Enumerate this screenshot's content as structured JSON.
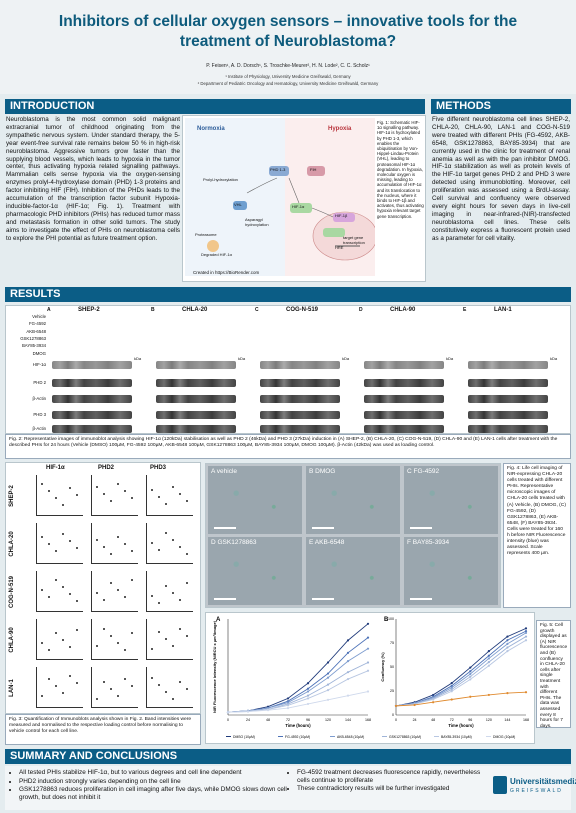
{
  "title": "Inhibitors of cellular oxygen sensors – innovative tools for the treatment of Neuroblastoma?",
  "authors": "P. Feisen¹, A. D. Dorsch¹, S. Troschke-Meurer², H. N. Lode², C. C. Scholz¹",
  "affiliations": [
    "¹ Institute of Physiology, University Medicine Greifswald, Germany",
    "² Department of Pediatric Oncology and Hematology, University Medicine Greifswald, Germany"
  ],
  "introduction": {
    "heading": "INTRODUCTION",
    "body": "Neuroblastoma is the most common solid malignant extracranial tumor of childhood originating from the sympathetic nervous system. Under standard therapy, the 5-year event-free survival rate remains below 50 % in high-risk neuroblastoma. Aggressive tumors grow faster than the supplying blood vessels, which leads to hypoxia in the tumor center, thus activating hypoxia related signalling pathways. Mammalian cells sense hypoxia via the oxygen-sensing enzymes prolyl-4-hydroxylase domain (PHD) 1-3 proteins and factor inhibiting HIF (FIH). Inhibition of the PHDs leads to the accumulation of the transcription factor subunit Hypoxia-inducible-factor-1α (HIF-1α; Fig. 1). Treatment with pharmacologic PHD inhibitors (PHIs) has reduced tumor mass and metastasis formation in other solid tumors. The study aims to investigate the effect of PHIs on neuroblastoma cells to explore the PHI potential as future treatment option.",
    "fig1": {
      "normoxia": "Normoxia",
      "hypoxia": "Hypoxia",
      "credit": "Created in https://BioRender.com",
      "caption": "Fig. 1: Schematic HIF-1α signalling pathway. HIF-1α is hydroxylated by PHD 1-3, which enables the ubiquitination by Von-Hippel-Lindau-Protein (VHL), leading to proteasomal HIF-1α degradation. In hypoxia, molecular oxygen is missing, leading to accumulation of HIF-1α and its translocation to the nucleus, where it binds to HIF-1β and activates, thus activating hypoxia relevant target gene transcription.",
      "labels": [
        "PHD 1-3",
        "FIH",
        "VHL",
        "HIF-1α",
        "HIF-1β",
        "Degraded HIF-1α",
        "Prolyl-hydroxylation",
        "Asparagyl hydroxylation",
        "Proteasome",
        "HRE",
        "target gene transcription"
      ]
    }
  },
  "methods": {
    "heading": "METHODS",
    "body": "Five different neuroblastoma cell lines SHEP-2, CHLA-20, CHLA-90, LAN-1 and COG-N-519 were treated with different PHIs (FG-4592, AKB-6548, GSK1278863, BAY85-3934) that are currently used in the clinic for treatment of renal anemia as well as with the pan inhibitor DMOG. HIF-1α stabilization as well as protein levels of the HIF-1α target genes PHD 2 and PHD 3 were detected using immunoblotting. Moreover, cell proliferation was assessed using a BrdU-assay. Cell survival and confluency were observed every eight hours for seven days in live-cell imaging in near-infrared-(NIR)-transfected neuroblastoma cell lines. These cells constitutively express a fluorescent protein used as a parameter for cell vitality."
  },
  "results": {
    "heading": "RESULTS",
    "cell_lines": [
      {
        "letter": "A",
        "name": "SHEP-2"
      },
      {
        "letter": "B",
        "name": "CHLA-20"
      },
      {
        "letter": "C",
        "name": "COG-N-519"
      },
      {
        "letter": "D",
        "name": "CHLA-90"
      },
      {
        "letter": "E",
        "name": "LAN-1"
      }
    ],
    "treatments": [
      "Vehicle",
      "FG-4592",
      "AKB-6548",
      "GSK1278863",
      "BAY85-3934",
      "DMOG"
    ],
    "blot_rows": [
      "HIF-1α",
      "PHD 2",
      "β-Actin",
      "PHD 3",
      "β-Actin"
    ],
    "kda": "kDa",
    "fig2_caption": "Fig. 2: Representative images of immunoblot analysis showing HIF-1α (120kDa) stabilisation as well as PHD 2 (46kDa) and PHD 3 (27kDa) induction in (A) SHEP-2, (B) CHLA-20, (C) COG-N-519, (D) CHLA-90 and (E) LAN-1 cells after treatment with the described PHIs for 24 hours (Vehicle (DMSO) 100µM, FG-4592 100µM, AKB-6548 100µM, GSK1278863 100µM, BAY85-3934 100µM, DMOG 100µM). β-Actin (42kDa) was used as loading control.",
    "fig3_cols": [
      "HIF-1α",
      "PHD2",
      "PHD3"
    ],
    "fig3_rows": [
      "SHEP-2",
      "CHLA-20",
      "COG-N-519",
      "CHLA-90",
      "LAN-1"
    ],
    "fig3_caption": "Fig. 3: Quantification of Immunoblots analysis shown in Fig. 2. Band intensities were measured and normalised to the respective loading control before normalising to vehicle control for each cell line.",
    "fig4_panels": [
      "A  vehicle",
      "B  DMOG",
      "C  FG-4592",
      "D  GSK1278863",
      "E  AKB-6548",
      "F  BAY85-3934"
    ],
    "fig4_caption": "Fig. 4: Life cell imaging of NIR-expressing CHLA-20 cells treated with different PHIs. Representative microscopic images of CHLA-20 cells treated with (A) Vehicle, (B) DMOG, (C) FG-4592, (D) GSK1278863, (E) AKB-6548, (F) BAY85-3934. Cells were treated for 160 h before NIR Fluorescence intensity (blue) was assessed. Scale represents 400 µm.",
    "fig5_caption": "Fig. 5: Cell growth displayed as (A) NIR fluorescence and (B) confluency in CHLA-20 cells after single treatment with different PHIs. The data was assessed every 8 hours for 7 days."
  },
  "chart_data": [
    {
      "type": "line",
      "panel": "A",
      "xlabel": "Time (hours)",
      "ylabel": "NIR Fluorescence Intensity (NIRCU x µm²/image)",
      "x": [
        0,
        24,
        48,
        72,
        96,
        120,
        144,
        168
      ],
      "xlim": [
        0,
        168
      ],
      "series": [
        {
          "name": "DMSO (10µM)",
          "color": "#1f3a7a",
          "values": [
            0.2,
            0.3,
            0.6,
            1.2,
            2.3,
            3.8,
            5.4,
            6.6
          ]
        },
        {
          "name": "FG-4592 (10µM)",
          "color": "#4e73b8",
          "values": [
            0.2,
            0.3,
            0.5,
            1.0,
            1.9,
            3.0,
            4.5,
            5.6
          ]
        },
        {
          "name": "AKB-6548 (10µM)",
          "color": "#7d9ccf",
          "values": [
            0.2,
            0.3,
            0.5,
            0.9,
            1.7,
            2.7,
            3.9,
            4.8
          ]
        },
        {
          "name": "GSK1278863 (10µM)",
          "color": "#9fb4d8",
          "values": [
            0.2,
            0.3,
            0.4,
            0.8,
            1.4,
            2.2,
            3.1,
            3.8
          ]
        },
        {
          "name": "BAY85-3934 (10µM)",
          "color": "#b8c7e2",
          "values": [
            0.2,
            0.25,
            0.4,
            0.7,
            1.2,
            1.8,
            2.6,
            3.2
          ]
        },
        {
          "name": "DMOG (10µM)",
          "color": "#cfd9ec",
          "values": [
            0.2,
            0.25,
            0.35,
            0.5,
            0.8,
            1.1,
            1.4,
            1.7
          ]
        }
      ]
    },
    {
      "type": "line",
      "panel": "B",
      "xlabel": "Time (hours)",
      "ylabel": "Confluency (%)",
      "x": [
        0,
        24,
        48,
        72,
        96,
        120,
        144,
        168
      ],
      "xlim": [
        0,
        168
      ],
      "ylim": [
        0,
        100
      ],
      "series": [
        {
          "name": "DMSO (10µM)",
          "color": "#1f3a7a",
          "values": [
            10,
            14,
            22,
            35,
            52,
            70,
            86,
            95
          ]
        },
        {
          "name": "FG-4592 (10µM)",
          "color": "#4e73b8",
          "values": [
            10,
            13,
            20,
            32,
            48,
            65,
            82,
            92
          ]
        },
        {
          "name": "AKB-6548 (10µM)",
          "color": "#7d9ccf",
          "values": [
            10,
            13,
            19,
            30,
            45,
            62,
            78,
            90
          ]
        },
        {
          "name": "GSK1278863 (10µM)",
          "color": "#9fb4d8",
          "values": [
            10,
            12,
            18,
            28,
            42,
            58,
            74,
            86
          ]
        },
        {
          "name": "BAY85-3934 (10µM)",
          "color": "#b8c7e2",
          "values": [
            10,
            12,
            17,
            26,
            39,
            54,
            70,
            82
          ]
        },
        {
          "name": "DMOG (10µM)",
          "color": "#e08a2e",
          "values": [
            10,
            11,
            14,
            17,
            20,
            22,
            24,
            25
          ]
        }
      ]
    }
  ],
  "summary": {
    "heading": "SUMMARY AND CONCLUSIONS",
    "left": [
      "All tested PHIs stabilize HIF-1α, but to various degrees and cell line dependent",
      "PHD2 induction strongly varies depending on the cell line",
      "GSK1278863 reduces proliferation in cell imaging after five days, while DMOG slows down cell growth, but does not inhibit it"
    ],
    "right": [
      "FG-4592 treatment decreases fluorescence rapidly, nevertheless cells continue to proliferate",
      "These contradictory results will be further investigated"
    ],
    "logo_text": "Universitätsmedizin",
    "logo_sub": "GREIFSWALD"
  }
}
